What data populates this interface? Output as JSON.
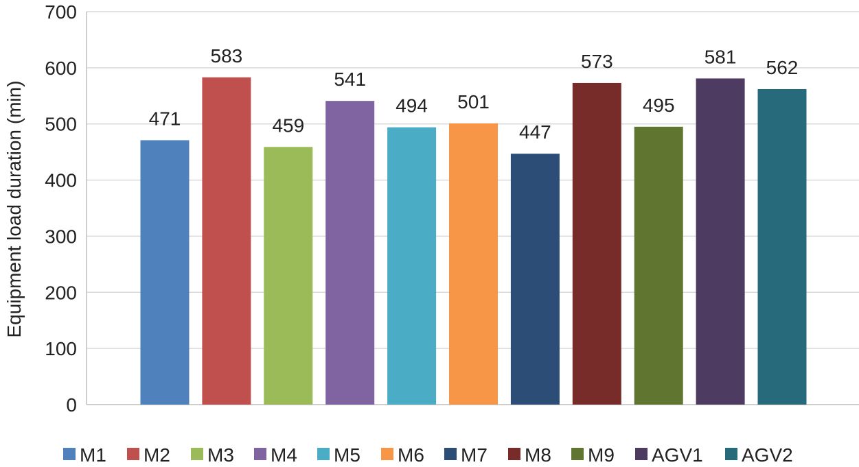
{
  "chart_data": {
    "type": "bar",
    "title": "",
    "xlabel": "",
    "ylabel": "Equipment load duration (min)",
    "ylim": [
      0,
      700
    ],
    "yticks": [
      0,
      100,
      200,
      300,
      400,
      500,
      600,
      700
    ],
    "grid": "horizontal",
    "legend_position": "bottom",
    "categories": [
      "M1",
      "M2",
      "M3",
      "M4",
      "M5",
      "M6",
      "M7",
      "M8",
      "M9",
      "AGV1",
      "AGV2"
    ],
    "values": [
      471,
      583,
      459,
      541,
      494,
      501,
      447,
      573,
      495,
      581,
      562
    ],
    "colors": [
      "#4f81bd",
      "#c0504d",
      "#9bbb59",
      "#8064a2",
      "#4bacc6",
      "#f79646",
      "#2c4d75",
      "#772c2a",
      "#5f7530",
      "#4d3b62",
      "#276a7c"
    ],
    "data_labels": true
  }
}
